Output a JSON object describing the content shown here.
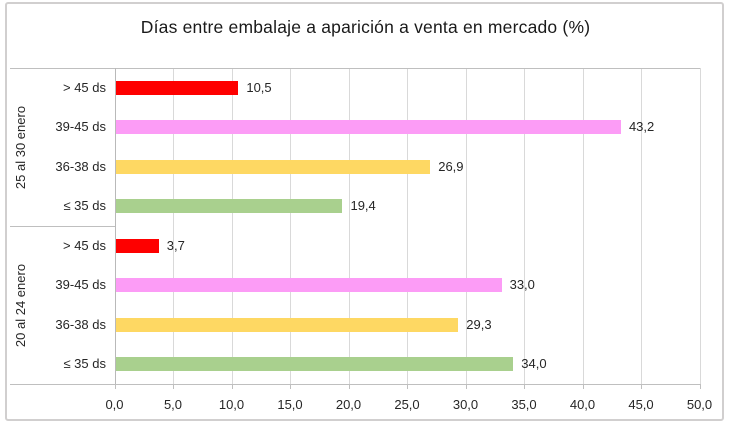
{
  "chart_data": {
    "type": "bar",
    "orientation": "horizontal",
    "title": "Días entre embalaje a aparición a venta en mercado (%)",
    "grid": true,
    "legend": false,
    "x_axis": {
      "min": 0,
      "max": 50,
      "step": 5,
      "tick_labels": [
        "0,0",
        "5,0",
        "10,0",
        "15,0",
        "20,0",
        "25,0",
        "30,0",
        "35,0",
        "40,0",
        "45,0",
        "50,0"
      ]
    },
    "groups": [
      {
        "label": "25 al 30 enero",
        "rows": [
          {
            "category": "> 45 ds",
            "value": 10.5,
            "value_label": "10,5",
            "color": "#fe0000"
          },
          {
            "category": "39-45 ds",
            "value": 43.2,
            "value_label": "43,2",
            "color": "#fc9cf6"
          },
          {
            "category": "36-38 ds",
            "value": 26.9,
            "value_label": "26,9",
            "color": "#fed863"
          },
          {
            "category": "≤ 35 ds",
            "value": 19.4,
            "value_label": "19,4",
            "color": "#a9d08e"
          }
        ]
      },
      {
        "label": "20 al 24 enero",
        "rows": [
          {
            "category": "> 45 ds",
            "value": 3.7,
            "value_label": "3,7",
            "color": "#fe0000"
          },
          {
            "category": "39-45 ds",
            "value": 33.0,
            "value_label": "33,0",
            "color": "#fc9cf6"
          },
          {
            "category": "36-38 ds",
            "value": 29.3,
            "value_label": "29,3",
            "color": "#fed863"
          },
          {
            "category": "≤ 35 ds",
            "value": 34.0,
            "value_label": "34,0",
            "color": "#a9d08e"
          }
        ]
      }
    ],
    "colors": {
      "gridline": "#d9d9d9",
      "axis": "#bfbfbf",
      "text": "#262626",
      "frame_border": "#d1cfcf"
    }
  }
}
